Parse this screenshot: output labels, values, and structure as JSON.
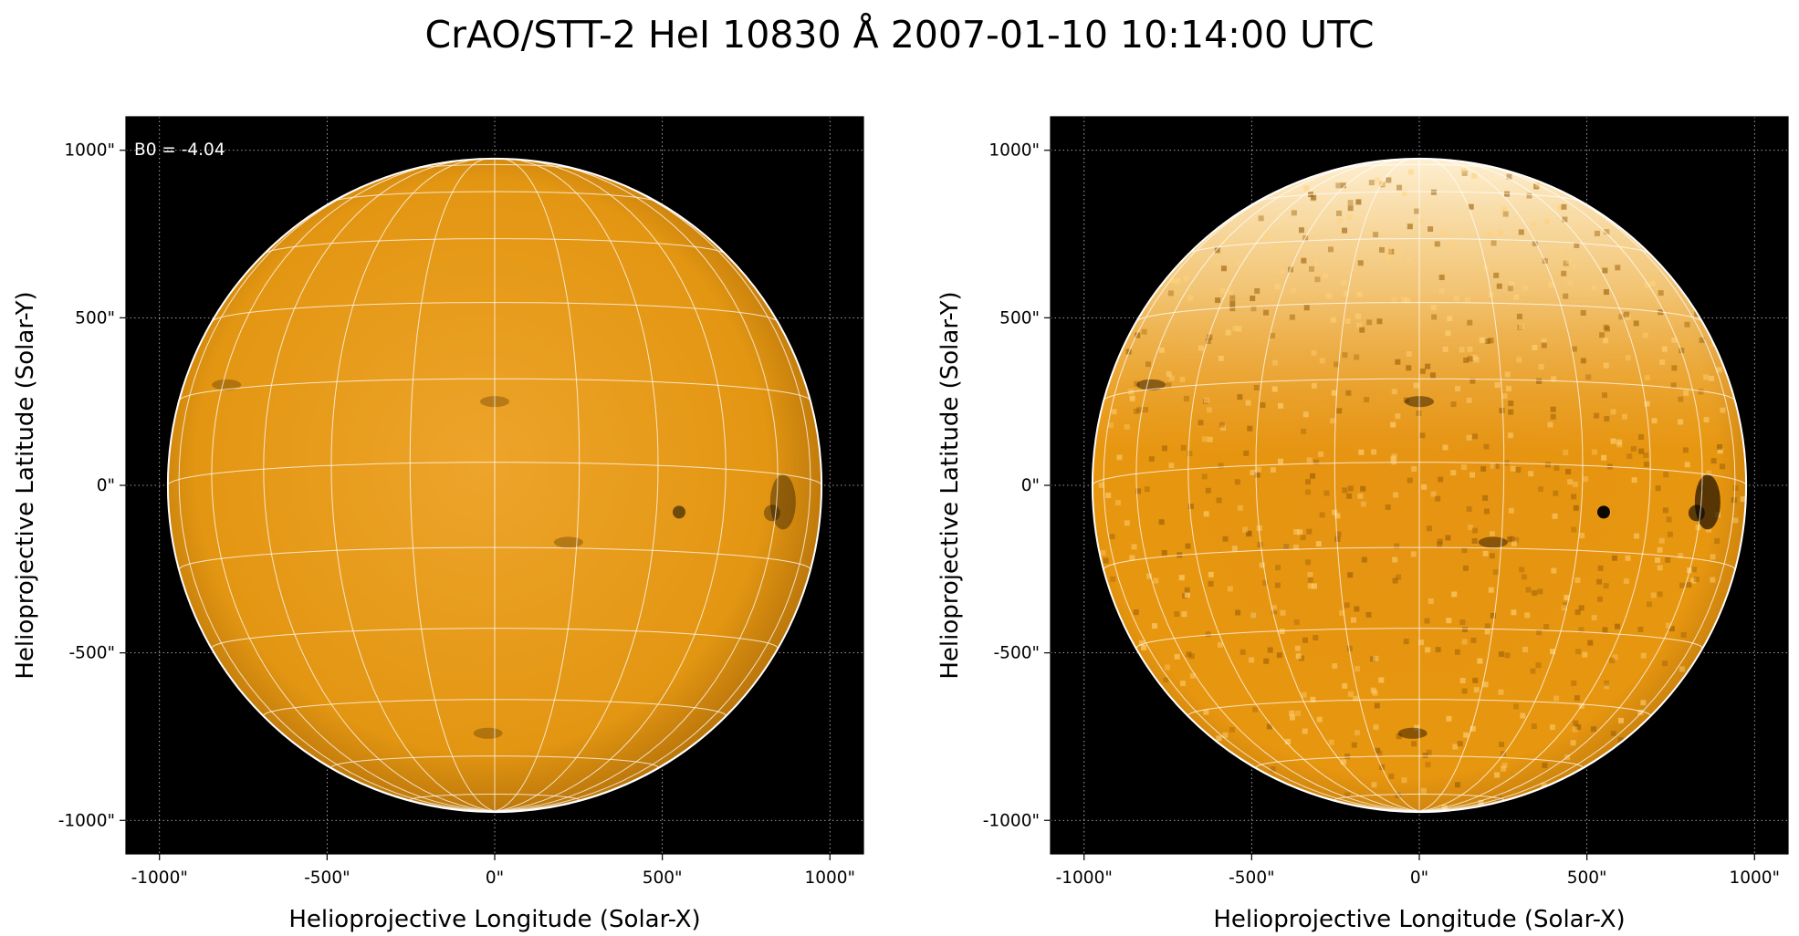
{
  "title": "CrAO/STT-2 HeI 10830 Å 2007-01-10 10:14:00 UTC",
  "panels": [
    {
      "annotation": "B0 = -4.04",
      "x_axis_label": "Helioprojective Longitude (Solar-X)",
      "y_axis_label": "Helioprojective Latitude (Solar-Y)",
      "x_ticks": [
        "-1000\"",
        "-500\"",
        "0\"",
        "500\"",
        "1000\""
      ],
      "y_ticks": [
        "1000\"",
        "500\"",
        "0\"",
        "-500\"",
        "-1000\""
      ],
      "axis_range_arcsec": [
        -1100,
        1100
      ],
      "disk_radius_arcsec": 975,
      "colormap": "HeI 10830 orange",
      "background": "#000000",
      "disk_color": "#e39612"
    },
    {
      "annotation": "",
      "x_axis_label": "Helioprojective Longitude (Solar-X)",
      "y_axis_label": "Helioprojective Latitude (Solar-Y)",
      "x_ticks": [
        "-1000\"",
        "-500\"",
        "0\"",
        "500\"",
        "1000\""
      ],
      "y_ticks": [
        "1000\"",
        "500\"",
        "0\"",
        "-500\"",
        "-1000\""
      ],
      "axis_range_arcsec": [
        -1100,
        1100
      ],
      "disk_radius_arcsec": 975,
      "colormap": "HeI 10830 orange (enhanced contrast)",
      "background": "#000000",
      "disk_color": "#e7960f"
    }
  ],
  "grid": {
    "heliographic_spacing_deg": 15,
    "color": "#ffffff",
    "axes_grid": "dotted"
  },
  "features": [
    {
      "name": "filament",
      "x_arcsec": 550,
      "y_arcsec": -80
    },
    {
      "name": "active-region",
      "x_arcsec": 860,
      "y_arcsec": -50
    },
    {
      "name": "filament",
      "x_arcsec": 220,
      "y_arcsec": -170
    },
    {
      "name": "filament",
      "x_arcsec": 0,
      "y_arcsec": 250
    },
    {
      "name": "filament",
      "x_arcsec": -20,
      "y_arcsec": -740
    },
    {
      "name": "filament",
      "x_arcsec": -800,
      "y_arcsec": 300
    }
  ]
}
